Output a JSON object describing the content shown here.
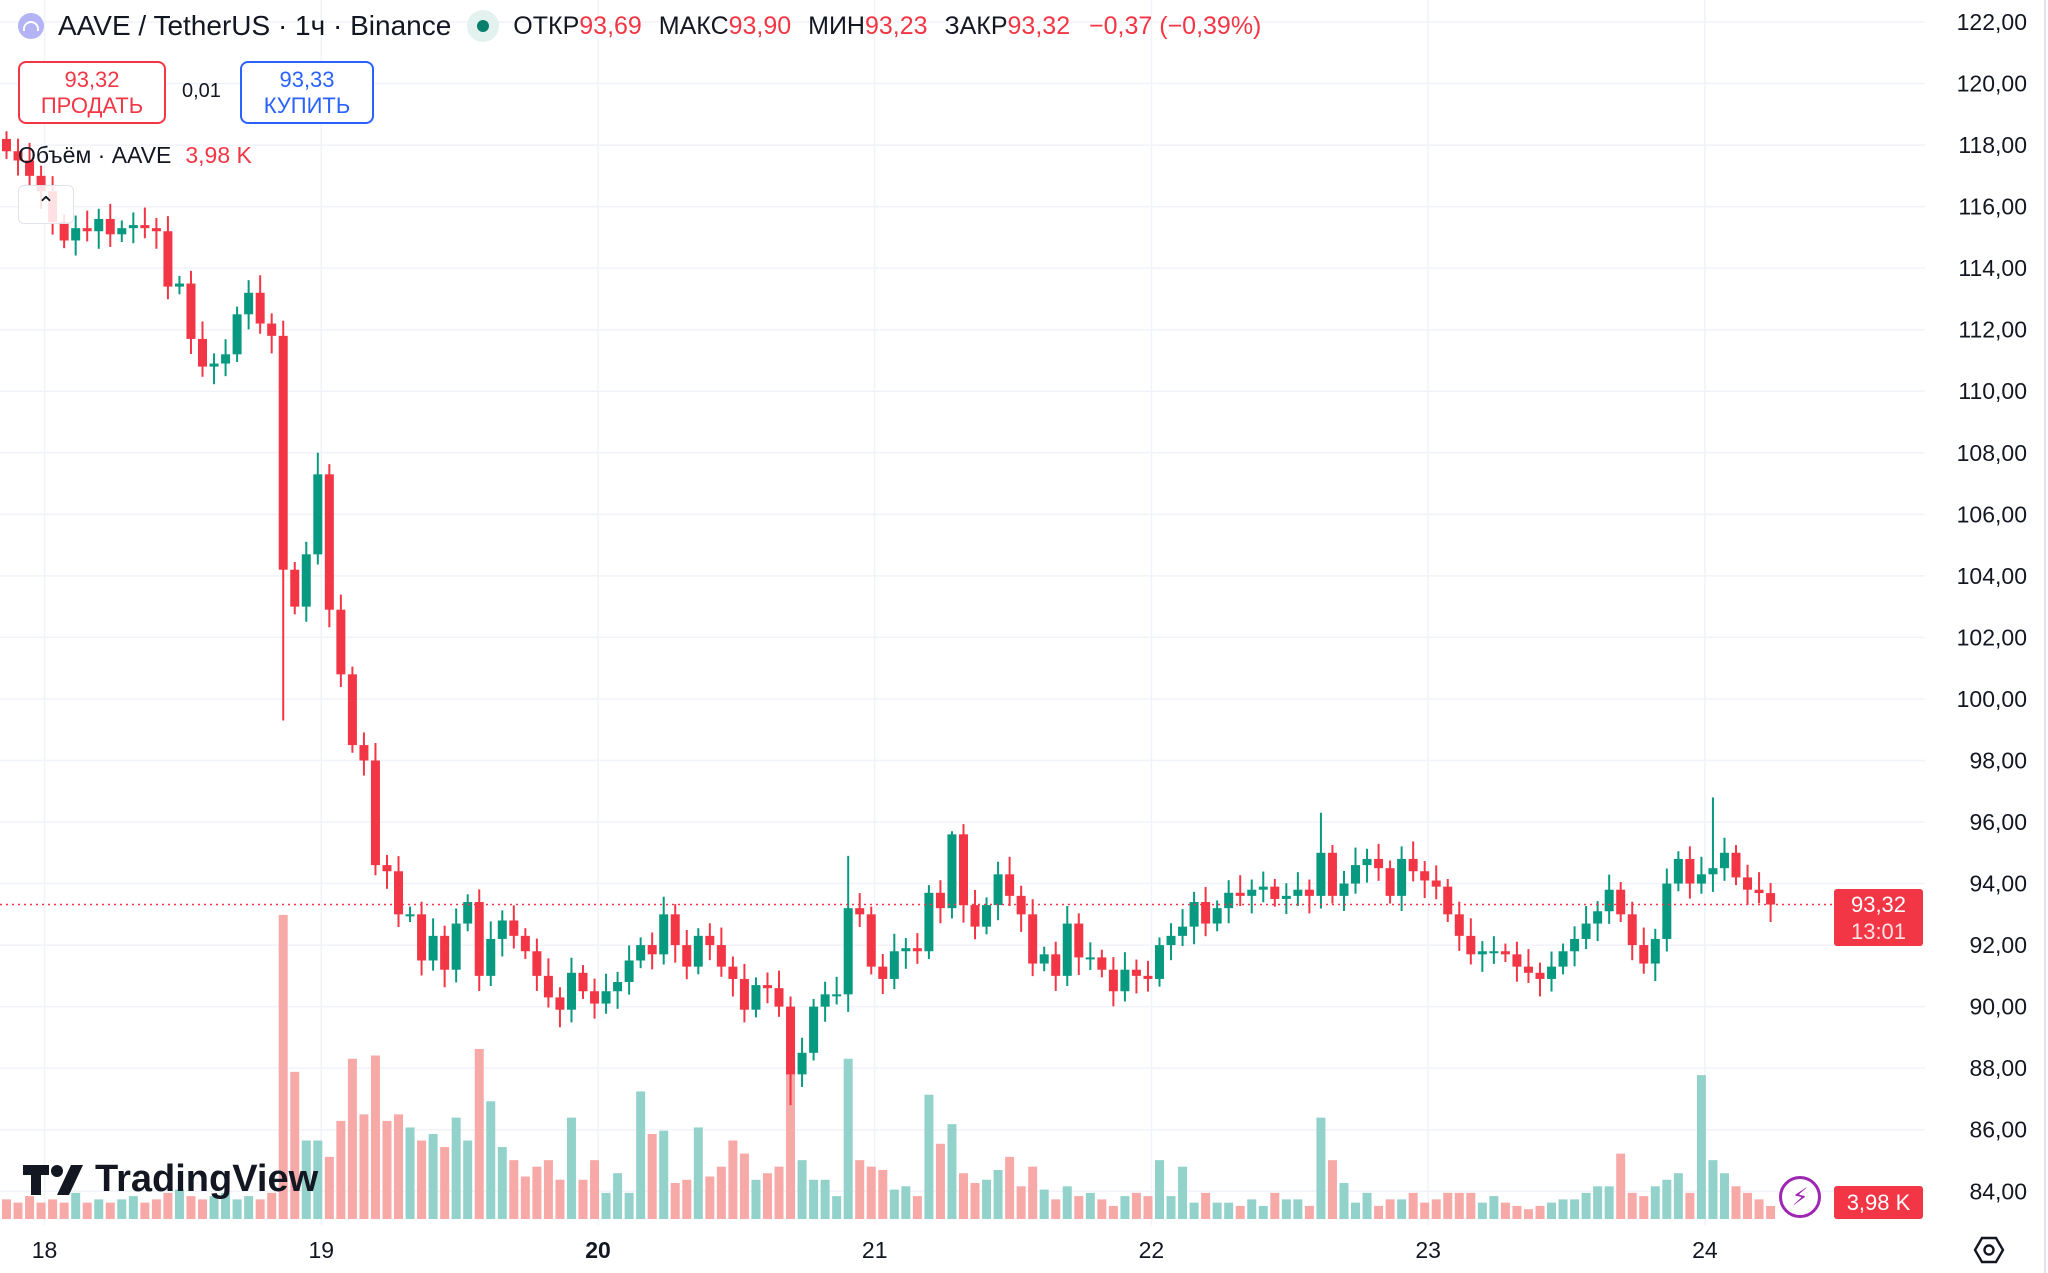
{
  "header": {
    "symbol": "AAVE / TetherUS · 1ч · Binance",
    "symbol_icon": "aave-logo-icon",
    "status_icon": "market-open-dot-icon",
    "open_label": "ОТКР",
    "open": "93,69",
    "high_label": "МАКС",
    "high": "93,90",
    "low_label": "МИН",
    "low": "93,23",
    "close_label": "ЗАКР",
    "close": "93,32",
    "change": "−0,37 (−0,39%)"
  },
  "trade": {
    "sell_price": "93,32",
    "sell_label": "ПРОДАТЬ",
    "spread": "0,01",
    "buy_price": "93,33",
    "buy_label": "КУПИТЬ"
  },
  "volume_legend": {
    "label": "Объём · AAVE",
    "value": "3,98 K"
  },
  "price_tag": {
    "price": "93,32",
    "countdown": "13:01"
  },
  "volume_tag": "3,98 K",
  "logo": "TradingView",
  "colors": {
    "up": "#089981",
    "down": "#f23645",
    "up_volume": "#92d2cb",
    "down_volume": "#f7a9a7",
    "grid": "#f0f3fa"
  },
  "chart_data": {
    "type": "candlestick",
    "interval": "1h",
    "ylim": [
      84,
      122
    ],
    "y_ticks": [
      "122,00",
      "120,00",
      "118,00",
      "116,00",
      "114,00",
      "112,00",
      "110,00",
      "108,00",
      "106,00",
      "104,00",
      "102,00",
      "100,00",
      "98,00",
      "96,00",
      "94,00",
      "92,00",
      "90,00",
      "88,00",
      "86,00",
      "84,00"
    ],
    "x_ticks": [
      "18",
      "19",
      "20",
      "21",
      "22",
      "23",
      "24"
    ],
    "x_tick_bold": "20",
    "first_open": 118.2,
    "close": [
      117.8,
      117.5,
      117.0,
      116.5,
      115.5,
      114.9,
      115.3,
      115.2,
      115.6,
      115.1,
      115.3,
      115.4,
      115.3,
      115.2,
      113.4,
      113.5,
      111.7,
      110.8,
      110.9,
      111.2,
      112.5,
      113.2,
      112.2,
      111.8,
      104.2,
      103.0,
      104.7,
      107.3,
      102.9,
      100.8,
      98.5,
      98.0,
      94.6,
      94.4,
      93.0,
      93.0,
      91.5,
      92.3,
      91.2,
      92.7,
      93.4,
      91.0,
      92.2,
      92.8,
      92.3,
      91.8,
      91.0,
      90.3,
      89.9,
      91.1,
      90.5,
      90.1,
      90.5,
      90.8,
      91.5,
      92.0,
      91.7,
      93.0,
      92.0,
      91.3,
      92.3,
      92.0,
      91.3,
      90.9,
      89.9,
      90.7,
      90.6,
      90.0,
      87.8,
      88.5,
      90.0,
      90.4,
      90.4,
      93.2,
      93.0,
      91.3,
      90.9,
      91.8,
      91.9,
      91.8,
      93.7,
      93.2,
      95.6,
      93.3,
      92.6,
      93.3,
      94.3,
      93.6,
      93.0,
      91.4,
      91.7,
      91.0,
      92.7,
      91.6,
      91.6,
      91.2,
      90.5,
      91.2,
      91.0,
      90.9,
      92.0,
      92.3,
      92.6,
      93.4,
      92.7,
      93.2,
      93.7,
      93.6,
      93.8,
      93.9,
      93.5,
      93.6,
      93.8,
      93.6,
      95.0,
      93.6,
      94.0,
      94.6,
      94.8,
      94.5,
      93.6,
      94.8,
      94.4,
      94.1,
      93.9,
      93.0,
      92.3,
      91.7,
      91.8,
      91.8,
      91.7,
      91.3,
      91.1,
      90.9,
      91.3,
      91.8,
      92.2,
      92.7,
      93.1,
      93.8,
      93.0,
      92.0,
      91.4,
      92.2,
      94.0,
      94.8,
      94.0,
      94.3,
      94.5,
      95.0,
      94.2,
      93.8,
      93.69,
      93.32
    ],
    "volume_k": [
      6,
      5,
      7,
      5,
      6,
      5,
      8,
      5,
      6,
      5,
      6,
      7,
      5,
      6,
      8,
      9,
      7,
      6,
      7,
      8,
      6,
      7,
      6,
      8,
      93,
      45,
      24,
      24,
      19,
      30,
      49,
      32,
      50,
      30,
      32,
      28,
      24,
      26,
      22,
      31,
      24,
      52,
      36,
      22,
      18,
      13,
      16,
      18,
      12,
      31,
      12,
      18,
      8,
      14,
      8,
      39,
      26,
      27,
      11,
      12,
      28,
      13,
      16,
      24,
      20,
      12,
      14,
      16,
      45,
      18,
      12,
      12,
      7,
      49,
      18,
      16,
      15,
      9,
      10,
      7,
      38,
      23,
      29,
      14,
      11,
      12,
      15,
      19,
      10,
      16,
      9,
      6,
      10,
      7,
      8,
      6,
      4,
      7,
      8,
      7,
      18,
      7,
      16,
      5,
      8,
      5,
      5,
      4,
      6,
      4,
      8,
      6,
      6,
      4,
      31,
      18,
      11,
      5,
      8,
      4,
      6,
      6,
      8,
      5,
      6,
      8,
      8,
      8,
      5,
      7,
      5,
      4,
      3,
      4,
      5,
      6,
      6,
      8,
      10,
      10,
      20,
      8,
      7,
      10,
      12,
      14,
      8,
      44,
      18,
      14,
      10,
      8,
      6,
      3.98
    ],
    "wick_extremes": {
      "24": {
        "low": 99.3
      },
      "27": {
        "high": 108.0
      },
      "68": {
        "low": 86.8
      },
      "73": {
        "high": 94.9
      },
      "82": {
        "high": 95.7
      },
      "114": {
        "high": 96.3
      },
      "148": {
        "high": 96.8
      }
    },
    "last_price": 93.32,
    "grid": true
  }
}
